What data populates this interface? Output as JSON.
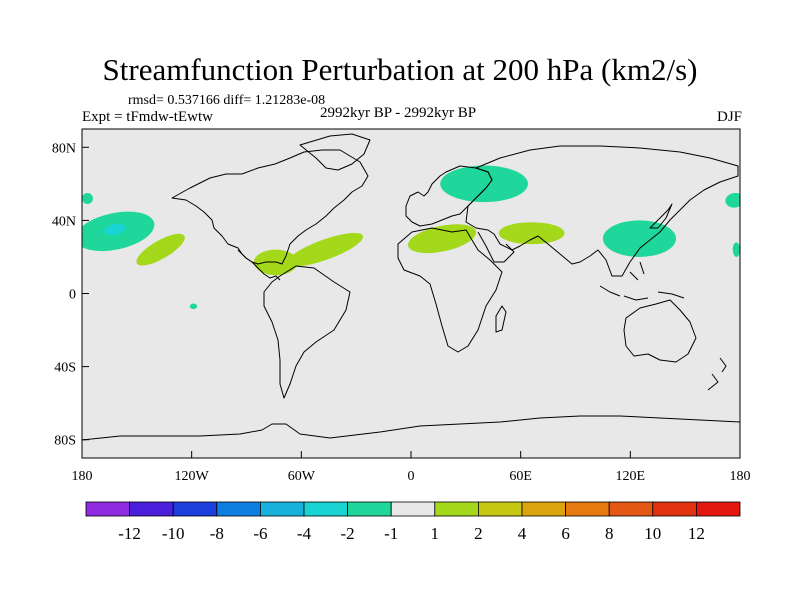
{
  "title": "Streamfunction Perturbation at 200 hPa (km2/s)",
  "stats": "rmsd= 0.537166 diff= 1.21283e-08",
  "experiment": "Expt = tFmdw-tEwtw",
  "period": "2992kyr BP - 2992kyr BP",
  "season": "DJF",
  "map": {
    "background": "#e8e8e8",
    "lat_ticks": [
      80,
      40,
      0,
      -40,
      -80
    ],
    "lat_labels": [
      "80N",
      "40N",
      "0",
      "40S",
      "80S"
    ],
    "lon_ticks": [
      -180,
      -120,
      -60,
      0,
      60,
      120,
      180
    ],
    "lon_labels": [
      "180",
      "120W",
      "60W",
      "0",
      "60E",
      "120E",
      "180"
    ]
  },
  "anomalies": [
    {
      "lon": 40,
      "lat": 60,
      "rx": 24,
      "ry": 10,
      "level": -1,
      "rot": 0
    },
    {
      "lon": -162,
      "lat": 34,
      "rx": 22,
      "ry": 10,
      "level": -1,
      "rot": -12
    },
    {
      "lon": -162,
      "lat": 35,
      "rx": 6,
      "ry": 3,
      "level": -2,
      "rot": -12
    },
    {
      "lon": 125,
      "lat": 30,
      "rx": 20,
      "ry": 10,
      "level": -1,
      "rot": 0
    },
    {
      "lon": -177,
      "lat": 52,
      "rx": 3,
      "ry": 3,
      "level": -1,
      "rot": 0
    },
    {
      "lon": 177,
      "lat": 51,
      "rx": 5,
      "ry": 4,
      "level": -1,
      "rot": -10
    },
    {
      "lon": -119,
      "lat": -7,
      "rx": 2,
      "ry": 1.5,
      "level": -1,
      "rot": 0
    },
    {
      "lon": 178,
      "lat": 24,
      "rx": 2,
      "ry": 4,
      "level": -1,
      "rot": 0
    },
    {
      "lon": -137,
      "lat": 24,
      "rx": 15,
      "ry": 5,
      "level": 1,
      "rot": -30
    },
    {
      "lon": -74,
      "lat": 17,
      "rx": 12,
      "ry": 7,
      "level": 1,
      "rot": 0
    },
    {
      "lon": -47,
      "lat": 24,
      "rx": 22,
      "ry": 5.5,
      "level": 1,
      "rot": -20
    },
    {
      "lon": 17,
      "lat": 30,
      "rx": 19,
      "ry": 7,
      "level": 1,
      "rot": -12
    },
    {
      "lon": 66,
      "lat": 33,
      "rx": 18,
      "ry": 6,
      "level": 1,
      "rot": 0
    }
  ],
  "colorbar": {
    "boundaries": [
      "-12",
      "-10",
      "-8",
      "-6",
      "-4",
      "-2",
      "-1",
      "1",
      "2",
      "4",
      "6",
      "8",
      "10",
      "12"
    ],
    "colors": [
      "#8f2ce2",
      "#4b1fdc",
      "#1d3fdc",
      "#0c7fe0",
      "#16b2dd",
      "#1ad3d3",
      "#1fd79a",
      "#e8e8e8",
      "#a4d81a",
      "#c5c712",
      "#dba40e",
      "#e67a10",
      "#e45815",
      "#e2310f",
      "#e4170f"
    ]
  },
  "level_colors": {
    "-2": "#1ad3d3",
    "-1": "#1fd79a",
    "1": "#a4d81a"
  }
}
